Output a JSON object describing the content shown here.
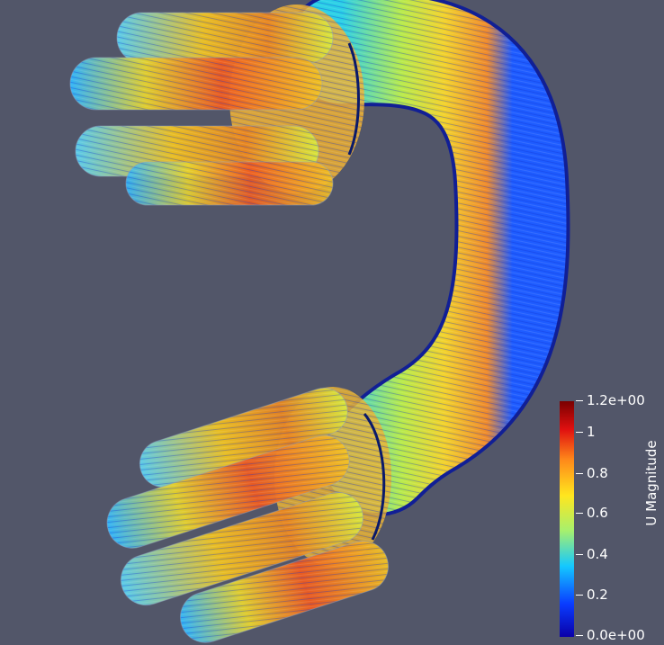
{
  "legend": {
    "title": "U Magnitude",
    "ticks": [
      "1.2e+00",
      "1",
      "0.8",
      "0.6",
      "0.4",
      "0.2",
      "0.0e+00"
    ],
    "range": [
      0,
      1.2
    ],
    "colormap": [
      "#0a00a8",
      "#0a3cff",
      "#14c8ff",
      "#a6f06e",
      "#ffe61e",
      "#ff8a1a",
      "#e01010",
      "#7a0000"
    ]
  },
  "colors": {
    "background": "#525669",
    "pipe_edge": "#0a1a9a"
  }
}
